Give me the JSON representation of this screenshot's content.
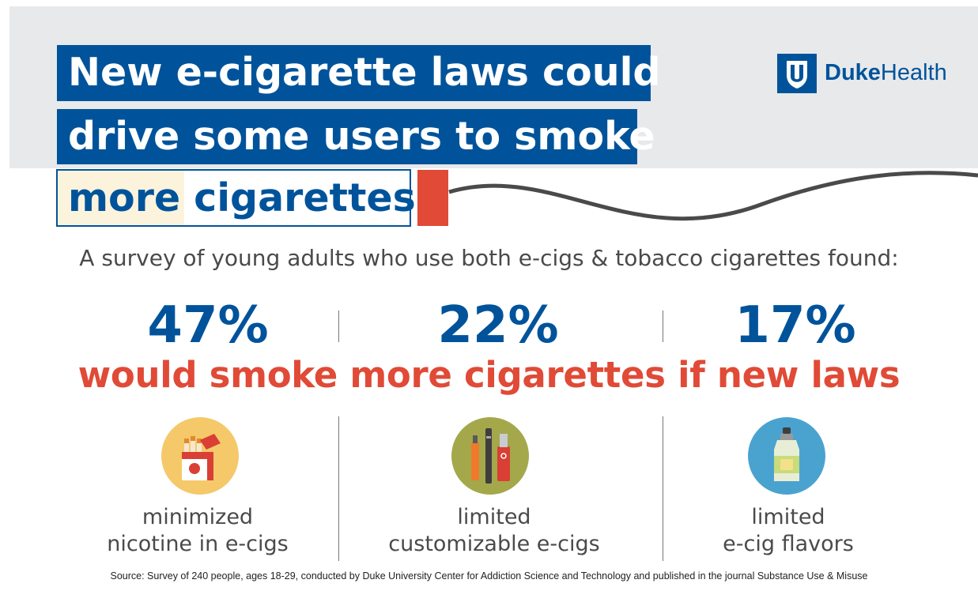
{
  "title": {
    "line1": "New e-cigarette laws could",
    "line2": "drive some users to smoke",
    "line3": "more cigarettes"
  },
  "logo": {
    "brand_bold": "Duke",
    "brand_regular": "Health"
  },
  "subtitle": "A survey of young adults who use both e-cigs & tobacco cigarettes found:",
  "headline": "would smoke more cigarettes if new laws",
  "stats": [
    {
      "percent": "47%",
      "label_line1": "minimized",
      "label_line2": "nicotine in e-cigs",
      "icon": "cigarette-pack-icon"
    },
    {
      "percent": "22%",
      "label_line1": "limited",
      "label_line2": "customizable e-cigs",
      "icon": "vape-devices-icon"
    },
    {
      "percent": "17%",
      "label_line1": "limited",
      "label_line2": "e-cig flavors",
      "icon": "eliquid-bottle-icon"
    }
  ],
  "colors": {
    "blue": "#00539b",
    "red": "#e04a36",
    "gray_text": "#4a4a4a",
    "band": "#e8e9eb"
  },
  "source": "Source: Survey of 240 people, ages 18-29, conducted by Duke University Center for Addiction Science and Technology and published in the journal Substance Use & Misuse"
}
